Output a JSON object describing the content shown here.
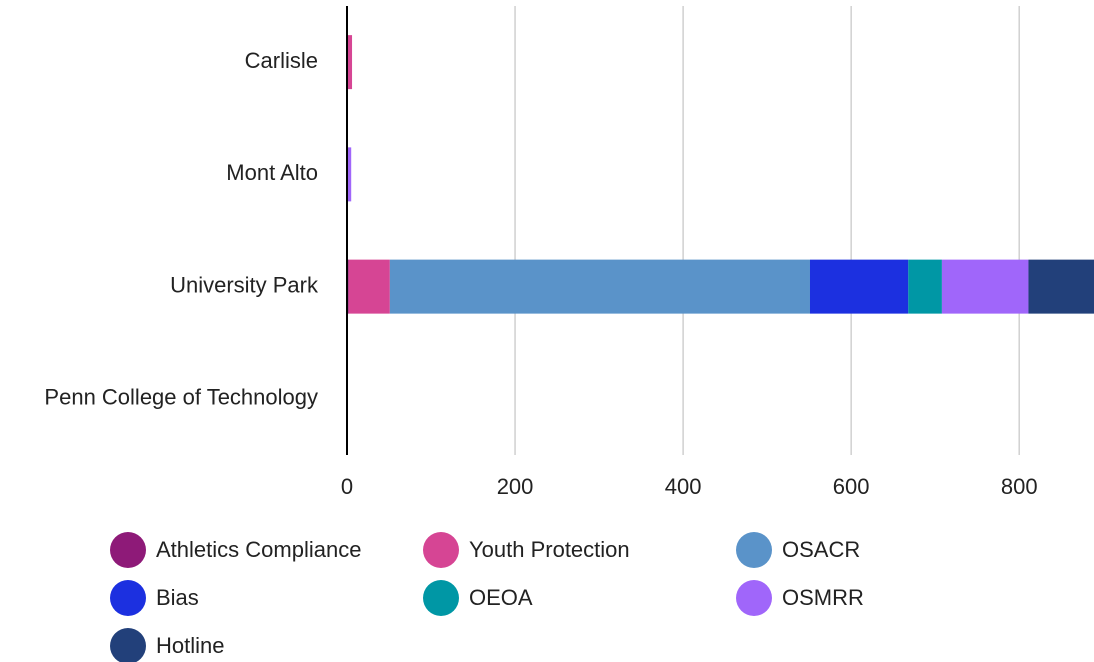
{
  "chart_data": {
    "type": "stacked-barh",
    "categories": [
      "Carlisle",
      "Mont Alto",
      "University Park",
      "Penn College of Technology"
    ],
    "series": [
      {
        "name": "Athletics Compliance",
        "color": "#8e1a78",
        "values": [
          0,
          0,
          2,
          0
        ]
      },
      {
        "name": "Youth Protection",
        "color": "#d64594",
        "values": [
          6,
          0,
          49,
          0
        ]
      },
      {
        "name": "OSACR",
        "color": "#5a93c9",
        "values": [
          0,
          0,
          500,
          0
        ]
      },
      {
        "name": "Bias",
        "color": "#1c30e0",
        "values": [
          0,
          0,
          117,
          0
        ]
      },
      {
        "name": "OEOA",
        "color": "#0097a5",
        "values": [
          0,
          0,
          40,
          0
        ]
      },
      {
        "name": "OSMRR",
        "color": "#a066fa",
        "values": [
          0,
          5,
          103,
          0
        ]
      },
      {
        "name": "Hotline",
        "color": "#22407a",
        "values": [
          0,
          0,
          78,
          0
        ]
      }
    ],
    "xlim": [
      0,
      889
    ],
    "xticks": [
      0,
      200,
      400,
      600,
      800
    ],
    "grid": true,
    "legend": "bottom"
  }
}
